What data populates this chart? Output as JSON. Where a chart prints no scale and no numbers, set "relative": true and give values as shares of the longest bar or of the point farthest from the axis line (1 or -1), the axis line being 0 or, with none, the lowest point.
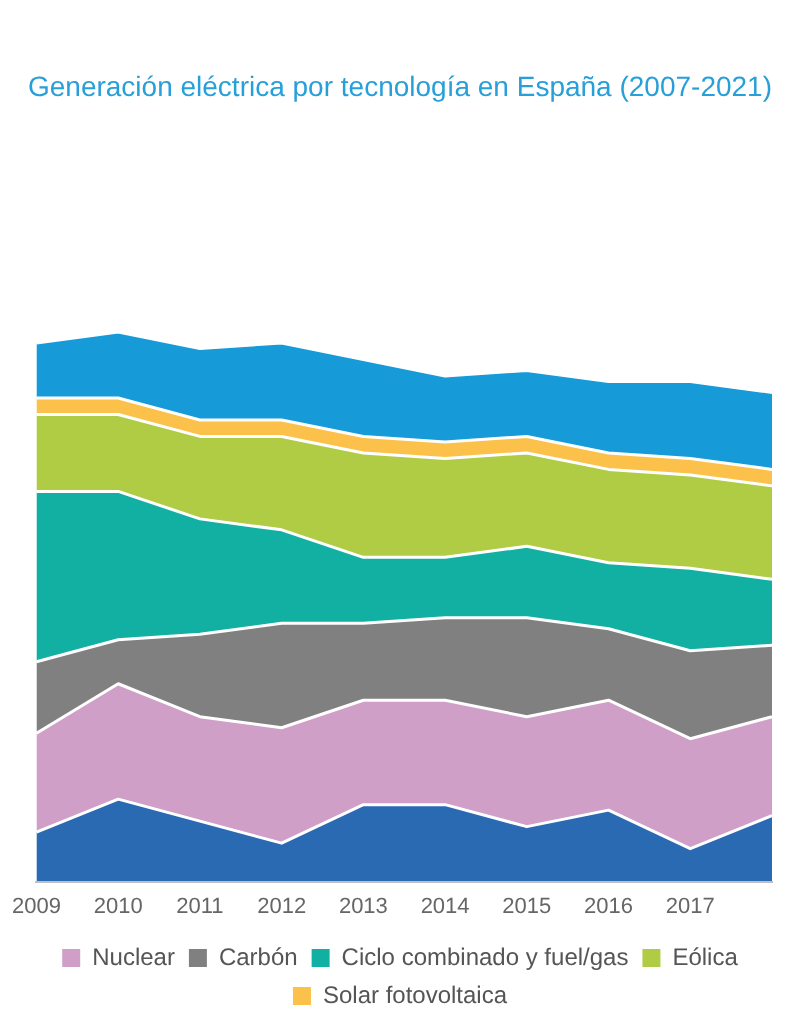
{
  "chart_data": {
    "type": "area",
    "stacked": true,
    "relative": true,
    "title": "Generación eléctrica por tecnología en España (2007-2021)",
    "categories": [
      "2009",
      "2010",
      "2011",
      "2012",
      "2013",
      "2014",
      "2015",
      "2016",
      "2017",
      null
    ],
    "series": [
      {
        "color": "#2a6ab3",
        "values": [
          0.09,
          0.15,
          0.11,
          0.07,
          0.14,
          0.14,
          0.1,
          0.13,
          0.06,
          0.12
        ]
      },
      {
        "name": "Nuclear",
        "color": "#cf9fc8",
        "values": [
          0.18,
          0.21,
          0.19,
          0.21,
          0.19,
          0.19,
          0.2,
          0.2,
          0.2,
          0.18
        ]
      },
      {
        "name": "Carbón",
        "color": "#808080",
        "values": [
          0.13,
          0.08,
          0.15,
          0.19,
          0.14,
          0.15,
          0.18,
          0.13,
          0.16,
          0.13
        ]
      },
      {
        "name": "Ciclo combinado y fuel/gas",
        "color": "#12b0a3",
        "values": [
          0.31,
          0.27,
          0.21,
          0.17,
          0.12,
          0.11,
          0.13,
          0.12,
          0.15,
          0.12
        ]
      },
      {
        "name": "Eólica",
        "color": "#b0cb44",
        "values": [
          0.14,
          0.14,
          0.15,
          0.17,
          0.19,
          0.18,
          0.17,
          0.17,
          0.17,
          0.17
        ]
      },
      {
        "name": "Solar fotovoltaica",
        "color": "#fbc14a",
        "values": [
          0.03,
          0.03,
          0.03,
          0.03,
          0.03,
          0.03,
          0.03,
          0.03,
          0.03,
          0.03
        ]
      },
      {
        "color": "#169ad8",
        "values": [
          0.1,
          0.12,
          0.13,
          0.14,
          0.14,
          0.12,
          0.12,
          0.13,
          0.14,
          0.14
        ]
      }
    ],
    "grid": false,
    "legend": "bottom",
    "tick_labels": "x",
    "marker": "none"
  }
}
